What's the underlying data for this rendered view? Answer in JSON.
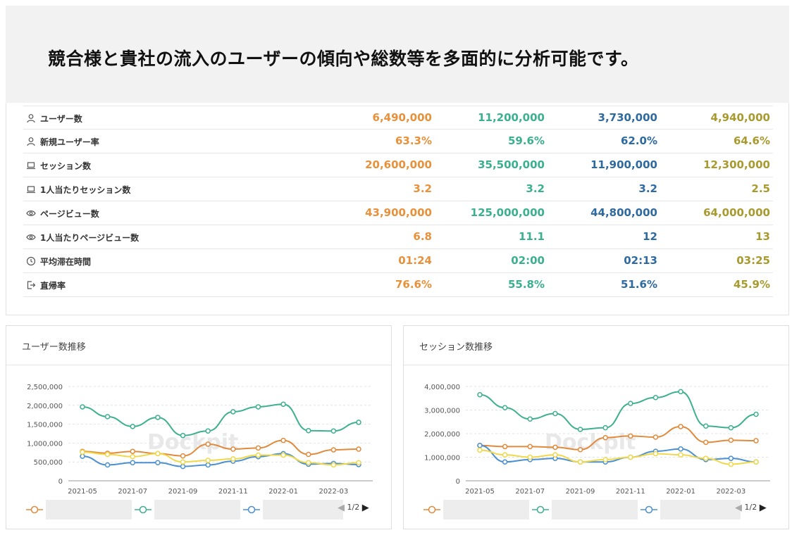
{
  "banner": {
    "title": "競合様と貴社の流入のユーザーの傾向や総数等を多面的に分析可能です。"
  },
  "colors": {
    "series": [
      "#e8913a",
      "#3bb08f",
      "#2e6aa0",
      "#a89a2e"
    ],
    "line_colors": [
      "#e08a3c",
      "#3db08e",
      "#4a90d0",
      "#f0d84a"
    ]
  },
  "metrics": [
    {
      "icon": "person-icon",
      "label": "ユーザー数",
      "values": [
        "6,490,000",
        "11,200,000",
        "3,730,000",
        "4,940,000"
      ]
    },
    {
      "icon": "person-icon",
      "label": "新規ユーザー率",
      "values": [
        "63.3%",
        "59.6%",
        "62.0%",
        "64.6%"
      ]
    },
    {
      "icon": "laptop-icon",
      "label": "セッション数",
      "values": [
        "20,600,000",
        "35,500,000",
        "11,900,000",
        "12,300,000"
      ]
    },
    {
      "icon": "laptop-icon",
      "label": "1人当たりセッション数",
      "values": [
        "3.2",
        "3.2",
        "3.2",
        "2.5"
      ]
    },
    {
      "icon": "eye-icon",
      "label": "ページビュー数",
      "values": [
        "43,900,000",
        "125,000,000",
        "44,800,000",
        "64,000,000"
      ]
    },
    {
      "icon": "eye-icon",
      "label": "1人当たりページビュー数",
      "values": [
        "6.8",
        "11.1",
        "12",
        "13"
      ]
    },
    {
      "icon": "clock-icon",
      "label": "平均滞在時間",
      "values": [
        "01:24",
        "02:00",
        "02:13",
        "03:25"
      ]
    },
    {
      "icon": "exit-icon",
      "label": "直帰率",
      "values": [
        "76.6%",
        "55.8%",
        "51.6%",
        "45.9%"
      ]
    }
  ],
  "pager": "1/2",
  "watermark": "Dockpit",
  "chart_data": [
    {
      "type": "line",
      "title": "ユーザー数推移",
      "x": [
        "2021-05",
        "2021-06",
        "2021-07",
        "2021-08",
        "2021-09",
        "2021-10",
        "2021-11",
        "2021-12",
        "2022-01",
        "2022-02",
        "2022-03",
        "2022-04"
      ],
      "x_tick_labels": [
        "2021-05",
        "2021-07",
        "2021-09",
        "2021-11",
        "2022-01",
        "2022-03"
      ],
      "y_ticks": [
        "0",
        "500,000",
        "1,000,000",
        "1,500,000",
        "2,000,000",
        "2,500,000"
      ],
      "ylim": [
        0,
        2500000
      ],
      "grid": true,
      "series": [
        {
          "values": [
            780000,
            730000,
            780000,
            720000,
            660000,
            970000,
            840000,
            870000,
            1070000,
            700000,
            820000,
            840000
          ]
        },
        {
          "values": [
            1960000,
            1700000,
            1440000,
            1680000,
            1200000,
            1320000,
            1830000,
            1960000,
            2030000,
            1330000,
            1320000,
            1550000
          ]
        },
        {
          "values": [
            650000,
            420000,
            480000,
            480000,
            380000,
            420000,
            520000,
            640000,
            720000,
            440000,
            460000,
            430000
          ]
        },
        {
          "values": [
            760000,
            700000,
            640000,
            720000,
            500000,
            540000,
            580000,
            680000,
            680000,
            480000,
            420000,
            480000
          ]
        }
      ]
    },
    {
      "type": "line",
      "title": "セッション数推移",
      "x": [
        "2021-05",
        "2021-06",
        "2021-07",
        "2021-08",
        "2021-09",
        "2021-10",
        "2021-11",
        "2021-12",
        "2022-01",
        "2022-02",
        "2022-03",
        "2022-04"
      ],
      "x_tick_labels": [
        "2021-05",
        "2021-07",
        "2021-09",
        "2021-11",
        "2022-01",
        "2022-03"
      ],
      "y_ticks": [
        "0",
        "1,000,000",
        "2,000,000",
        "3,000,000",
        "4,000,000"
      ],
      "ylim": [
        0,
        4000000
      ],
      "grid": true,
      "series": [
        {
          "values": [
            1500000,
            1450000,
            1450000,
            1420000,
            1320000,
            1830000,
            1900000,
            1850000,
            2300000,
            1630000,
            1720000,
            1700000
          ]
        },
        {
          "values": [
            3650000,
            3100000,
            2620000,
            2850000,
            2180000,
            2250000,
            3280000,
            3530000,
            3780000,
            2320000,
            2250000,
            2820000
          ]
        },
        {
          "values": [
            1500000,
            800000,
            900000,
            950000,
            800000,
            800000,
            1000000,
            1250000,
            1350000,
            900000,
            950000,
            800000
          ]
        },
        {
          "values": [
            1300000,
            1100000,
            1000000,
            1100000,
            800000,
            900000,
            1000000,
            1150000,
            1100000,
            950000,
            700000,
            800000
          ]
        }
      ]
    }
  ]
}
